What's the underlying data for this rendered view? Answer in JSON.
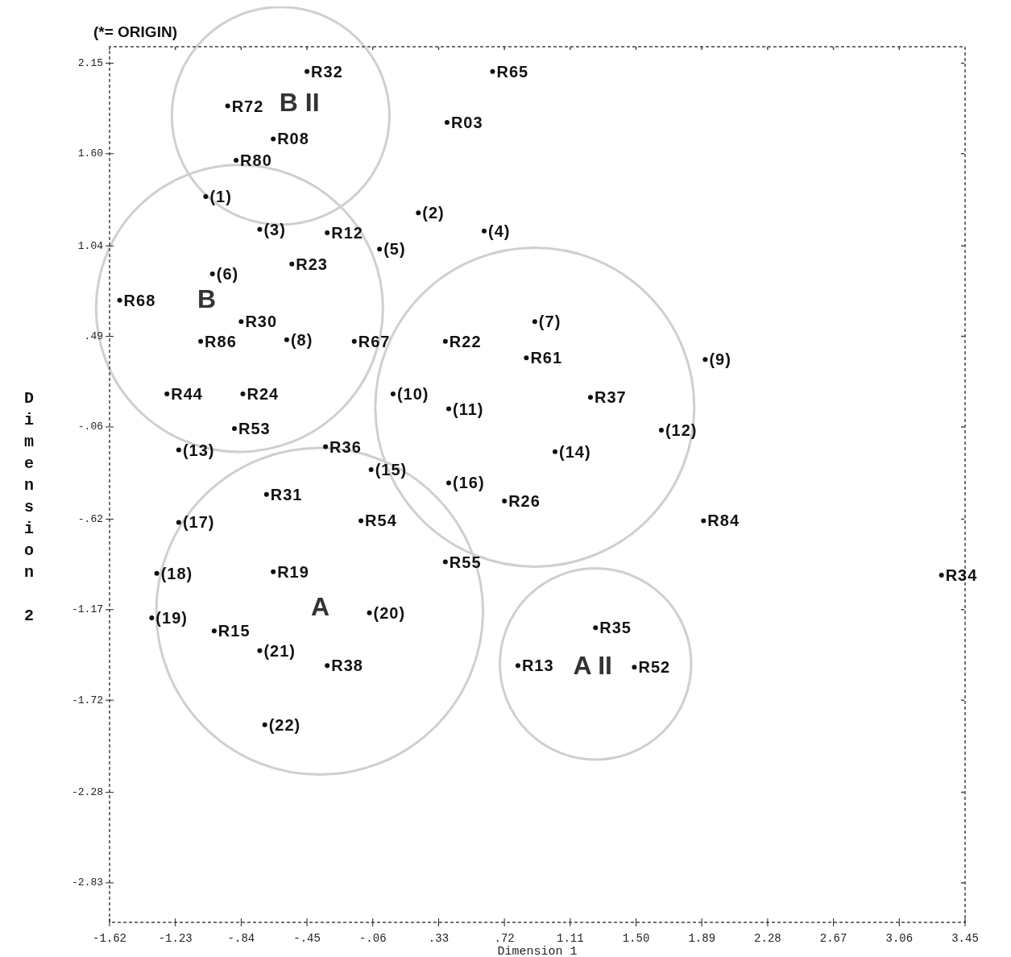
{
  "chart_data": {
    "type": "scatter",
    "xlabel": "Dimension 1",
    "ylabel": "Dimension 2",
    "xlim": [
      -1.62,
      3.45
    ],
    "ylim": [
      -3.07,
      2.25
    ],
    "xticks": [
      -1.62,
      -1.23,
      {
        "value": -0.84,
        "label": "-.84"
      },
      {
        "value": -0.45,
        "label": "-.45"
      },
      {
        "value": -0.06,
        "label": "-.06"
      },
      {
        "value": 0.33,
        "label": ".33"
      },
      {
        "value": 0.72,
        "label": ".72"
      },
      1.11,
      {
        "value": 1.5,
        "label": "1.50"
      },
      1.89,
      2.28,
      2.67,
      3.06,
      3.45
    ],
    "yticks": [
      2.15,
      {
        "value": 1.6,
        "label": "1.60"
      },
      1.04,
      {
        "value": 0.49,
        "label": ".49"
      },
      {
        "value": -0.06,
        "label": "-.06"
      },
      {
        "value": -0.62,
        "label": "-.62"
      },
      -1.17,
      -1.72,
      -2.28,
      -2.83
    ],
    "grid": false,
    "marker": "circle",
    "series": [
      {
        "name": "R32",
        "color": "#111111",
        "x": [
          -0.45
        ],
        "values": [
          2.1
        ]
      },
      {
        "name": "R65",
        "color": "#111111",
        "x": [
          0.65
        ],
        "values": [
          2.1
        ]
      },
      {
        "name": "R72",
        "color": "#111111",
        "x": [
          -0.92
        ],
        "values": [
          1.89
        ]
      },
      {
        "name": "R03",
        "color": "#111111",
        "x": [
          0.38
        ],
        "values": [
          1.79
        ]
      },
      {
        "name": "R08",
        "color": "#111111",
        "x": [
          -0.65
        ],
        "values": [
          1.69
        ]
      },
      {
        "name": "R80",
        "color": "#111111",
        "x": [
          -0.87
        ],
        "values": [
          1.56
        ]
      },
      {
        "name": "(1)",
        "color": "#111111",
        "x": [
          -1.05
        ],
        "values": [
          1.34
        ]
      },
      {
        "name": "(3)",
        "color": "#111111",
        "x": [
          -0.73
        ],
        "values": [
          1.14
        ]
      },
      {
        "name": "R12",
        "color": "#111111",
        "x": [
          -0.33
        ],
        "values": [
          1.12
        ]
      },
      {
        "name": "(2)",
        "color": "#111111",
        "x": [
          0.21
        ],
        "values": [
          1.24
        ]
      },
      {
        "name": "(4)",
        "color": "#111111",
        "x": [
          0.6
        ],
        "values": [
          1.13
        ]
      },
      {
        "name": "(5)",
        "color": "#111111",
        "x": [
          -0.02
        ],
        "values": [
          1.02
        ]
      },
      {
        "name": "R23",
        "color": "#111111",
        "x": [
          -0.54
        ],
        "values": [
          0.93
        ]
      },
      {
        "name": "(6)",
        "color": "#111111",
        "x": [
          -1.01
        ],
        "values": [
          0.87
        ]
      },
      {
        "name": "R68",
        "color": "#111111",
        "x": [
          -1.56
        ],
        "values": [
          0.71
        ]
      },
      {
        "name": "R30",
        "color": "#111111",
        "x": [
          -0.84
        ],
        "values": [
          0.58
        ]
      },
      {
        "name": "R86",
        "color": "#111111",
        "x": [
          -1.08
        ],
        "values": [
          0.46
        ]
      },
      {
        "name": "(8)",
        "color": "#111111",
        "x": [
          -0.57
        ],
        "values": [
          0.47
        ]
      },
      {
        "name": "R67",
        "color": "#111111",
        "x": [
          -0.17
        ],
        "values": [
          0.46
        ]
      },
      {
        "name": "R22",
        "color": "#111111",
        "x": [
          0.37
        ],
        "values": [
          0.46
        ]
      },
      {
        "name": "(7)",
        "color": "#111111",
        "x": [
          0.9
        ],
        "values": [
          0.58
        ]
      },
      {
        "name": "R61",
        "color": "#111111",
        "x": [
          0.85
        ],
        "values": [
          0.36
        ]
      },
      {
        "name": "(9)",
        "color": "#111111",
        "x": [
          1.91
        ],
        "values": [
          0.35
        ]
      },
      {
        "name": "R44",
        "color": "#111111",
        "x": [
          -1.28
        ],
        "values": [
          0.14
        ]
      },
      {
        "name": "R24",
        "color": "#111111",
        "x": [
          -0.83
        ],
        "values": [
          0.14
        ]
      },
      {
        "name": "(10)",
        "color": "#111111",
        "x": [
          0.06
        ],
        "values": [
          0.14
        ]
      },
      {
        "name": "(11)",
        "color": "#111111",
        "x": [
          0.39
        ],
        "values": [
          0.05
        ]
      },
      {
        "name": "R37",
        "color": "#111111",
        "x": [
          1.23
        ],
        "values": [
          0.12
        ]
      },
      {
        "name": "R53",
        "color": "#111111",
        "x": [
          -0.88
        ],
        "values": [
          -0.07
        ]
      },
      {
        "name": "(12)",
        "color": "#111111",
        "x": [
          1.65
        ],
        "values": [
          -0.08
        ]
      },
      {
        "name": "(13)",
        "color": "#111111",
        "x": [
          -1.21
        ],
        "values": [
          -0.2
        ]
      },
      {
        "name": "R36",
        "color": "#111111",
        "x": [
          -0.34
        ],
        "values": [
          -0.18
        ]
      },
      {
        "name": "(14)",
        "color": "#111111",
        "x": [
          1.02
        ],
        "values": [
          -0.21
        ]
      },
      {
        "name": "(15)",
        "color": "#111111",
        "x": [
          -0.07
        ],
        "values": [
          -0.32
        ]
      },
      {
        "name": "(16)",
        "color": "#111111",
        "x": [
          0.39
        ],
        "values": [
          -0.4
        ]
      },
      {
        "name": "R26",
        "color": "#111111",
        "x": [
          0.72
        ],
        "values": [
          -0.51
        ]
      },
      {
        "name": "R31",
        "color": "#111111",
        "x": [
          -0.69
        ],
        "values": [
          -0.47
        ]
      },
      {
        "name": "(17)",
        "color": "#111111",
        "x": [
          -1.21
        ],
        "values": [
          -0.64
        ]
      },
      {
        "name": "R54",
        "color": "#111111",
        "x": [
          -0.13
        ],
        "values": [
          -0.63
        ]
      },
      {
        "name": "R84",
        "color": "#111111",
        "x": [
          1.9
        ],
        "values": [
          -0.63
        ]
      },
      {
        "name": "R55",
        "color": "#111111",
        "x": [
          0.37
        ],
        "values": [
          -0.88
        ]
      },
      {
        "name": "(18)",
        "color": "#111111",
        "x": [
          -1.34
        ],
        "values": [
          -0.95
        ]
      },
      {
        "name": "R19",
        "color": "#111111",
        "x": [
          -0.65
        ],
        "values": [
          -0.94
        ]
      },
      {
        "name": "R34",
        "color": "#111111",
        "x": [
          3.31
        ],
        "values": [
          -0.96
        ]
      },
      {
        "name": "(19)",
        "color": "#111111",
        "x": [
          -1.37
        ],
        "values": [
          -1.22
        ]
      },
      {
        "name": "(20)",
        "color": "#111111",
        "x": [
          -0.08
        ],
        "values": [
          -1.19
        ]
      },
      {
        "name": "R15",
        "color": "#111111",
        "x": [
          -1.0
        ],
        "values": [
          -1.3
        ]
      },
      {
        "name": "(21)",
        "color": "#111111",
        "x": [
          -0.73
        ],
        "values": [
          -1.42
        ]
      },
      {
        "name": "R38",
        "color": "#111111",
        "x": [
          -0.33
        ],
        "values": [
          -1.51
        ]
      },
      {
        "name": "R35",
        "color": "#111111",
        "x": [
          1.26
        ],
        "values": [
          -1.28
        ]
      },
      {
        "name": "R13",
        "color": "#111111",
        "x": [
          0.8
        ],
        "values": [
          -1.51
        ]
      },
      {
        "name": "R52",
        "color": "#111111",
        "x": [
          1.49
        ],
        "values": [
          -1.52
        ]
      },
      {
        "name": "(22)",
        "color": "#111111",
        "x": [
          -0.7
        ],
        "values": [
          -1.87
        ]
      }
    ],
    "annotations": [
      "(*= ORIGIN)",
      "B II",
      "B",
      "A",
      "A II"
    ]
  }
}
